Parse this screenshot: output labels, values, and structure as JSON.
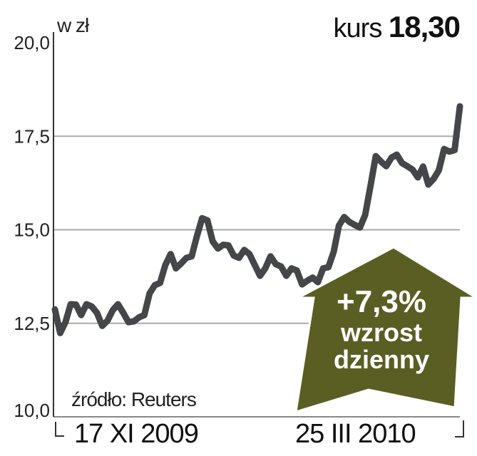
{
  "chart_data": {
    "type": "line",
    "title": "",
    "unit_label": "w zł",
    "headline": {
      "label": "kurs",
      "value": "18,30"
    },
    "xlabel": "",
    "ylabel": "",
    "ylim": [
      10,
      20
    ],
    "y_ticks": [
      "10,0",
      "12,5",
      "15,0",
      "17,5",
      "20,0"
    ],
    "y_tick_values": [
      10,
      12.5,
      15,
      17.5,
      20
    ],
    "x_tick_labels": [
      "17 XI 2009",
      "25 III 2010"
    ],
    "grid": true,
    "source": "źródło: Reuters",
    "series": [
      {
        "color": "#444649",
        "values": [
          12.87,
          12.24,
          12.53,
          13.01,
          13.0,
          12.72,
          13.01,
          12.95,
          12.78,
          12.43,
          12.57,
          12.85,
          13.01,
          12.78,
          12.53,
          12.55,
          12.66,
          12.72,
          13.3,
          13.52,
          13.58,
          14.06,
          14.35,
          13.97,
          14.1,
          14.25,
          14.29,
          14.83,
          15.31,
          15.25,
          14.69,
          14.5,
          14.6,
          14.58,
          14.31,
          14.25,
          14.46,
          14.35,
          14.06,
          13.77,
          13.97,
          14.29,
          14.08,
          14.02,
          13.77,
          13.97,
          13.91,
          13.54,
          13.64,
          13.72,
          13.6,
          13.97,
          14.0,
          14.41,
          15.11,
          15.34,
          15.21,
          15.13,
          15.06,
          15.4,
          16.17,
          16.97,
          16.82,
          16.7,
          16.93,
          17.01,
          16.78,
          16.7,
          16.61,
          16.4,
          16.69,
          16.21,
          16.36,
          16.59,
          17.16,
          17.09,
          17.13,
          18.3
        ]
      }
    ],
    "annotation": {
      "change": "+7,3%",
      "line1": "wzrost",
      "line2": "dzienny",
      "color": "#5b5e23",
      "icon": "up-arrow"
    }
  }
}
